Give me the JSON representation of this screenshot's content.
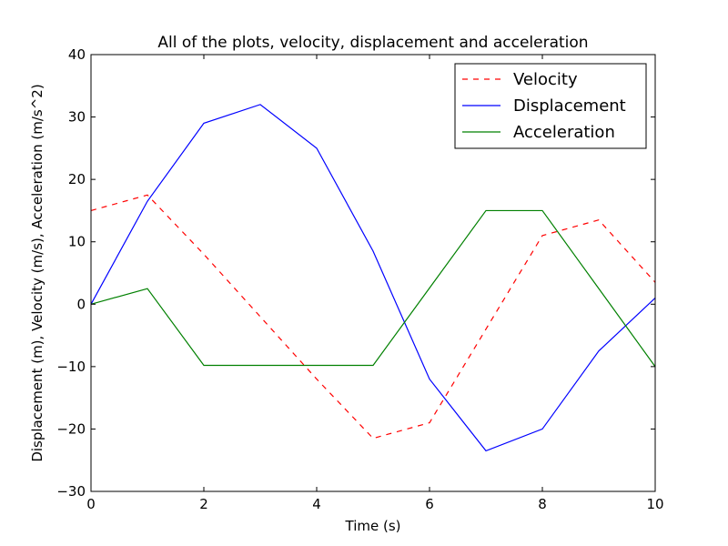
{
  "chart_data": {
    "type": "line",
    "title": "All of the plots, velocity, displacement and acceleration",
    "xlabel": "Time (s)",
    "ylabel": "Displacement (m), Velocity (m/s), Acceleration (m/s^2)",
    "xlim": [
      0,
      10
    ],
    "ylim": [
      -30,
      40
    ],
    "xticks": [
      0,
      2,
      4,
      6,
      8,
      10
    ],
    "yticks": [
      -30,
      -20,
      -10,
      0,
      10,
      20,
      30,
      40
    ],
    "grid": false,
    "legend_position": "top-right",
    "series": [
      {
        "name": "Velocity",
        "color": "#ff0000",
        "style": "dashed",
        "x": [
          0,
          1,
          2,
          3,
          4,
          5,
          6,
          7,
          8,
          9,
          10
        ],
        "y": [
          15,
          17.5,
          8,
          -2,
          -12,
          -21.5,
          -19,
          -4,
          11,
          13.5,
          3.5
        ]
      },
      {
        "name": "Displacement",
        "color": "#0000ff",
        "style": "solid",
        "x": [
          0,
          1,
          2,
          3,
          4,
          5,
          6,
          7,
          8,
          9,
          10
        ],
        "y": [
          0,
          16.5,
          29,
          32,
          25,
          8.5,
          -12,
          -23.5,
          -20,
          -7.5,
          1
        ]
      },
      {
        "name": "Acceleration",
        "color": "#008000",
        "style": "solid",
        "x": [
          0,
          1,
          2,
          3,
          4,
          5,
          6,
          7,
          8,
          9,
          10
        ],
        "y": [
          0,
          2.5,
          -9.8,
          -9.8,
          -9.8,
          -9.8,
          2.6,
          15,
          15,
          2.5,
          -10
        ]
      }
    ]
  }
}
